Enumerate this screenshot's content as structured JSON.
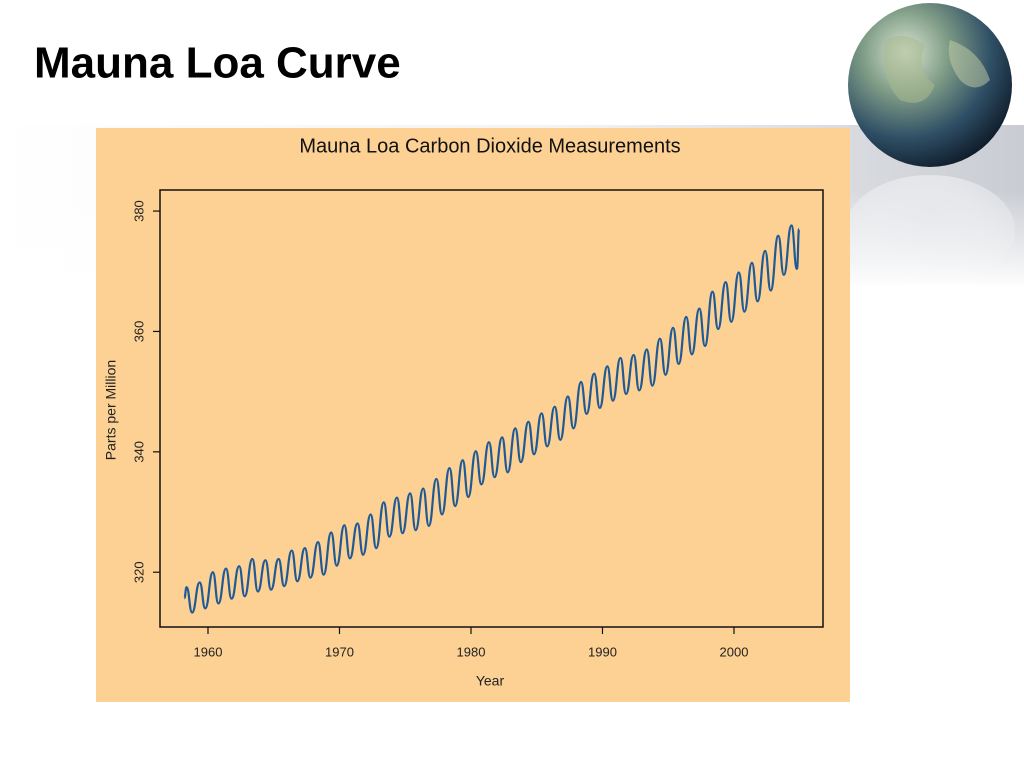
{
  "title": "Mauna Loa Curve",
  "chart_data": {
    "type": "line",
    "title": "Mauna Loa Carbon Dioxide Measurements",
    "xlabel": "Year",
    "ylabel": "Parts per Million",
    "color": "#1f5a96",
    "xlim": [
      1956.35,
      2006.77
    ],
    "ylim": [
      310.9,
      383.5
    ],
    "xticks": [
      1960,
      1970,
      1980,
      1990,
      2000
    ],
    "yticks": [
      320,
      340,
      360,
      380
    ],
    "x": [
      1958.2,
      1958.37,
      1958.79,
      1959.37,
      1959.79,
      1960.37,
      1960.79,
      1961.37,
      1961.79,
      1962.37,
      1962.79,
      1963.37,
      1963.79,
      1964.37,
      1964.79,
      1965.37,
      1965.79,
      1966.37,
      1966.79,
      1967.37,
      1967.79,
      1968.37,
      1968.79,
      1969.37,
      1969.79,
      1970.37,
      1970.79,
      1971.37,
      1971.79,
      1972.37,
      1972.79,
      1973.37,
      1973.79,
      1974.37,
      1974.79,
      1975.37,
      1975.79,
      1976.37,
      1976.79,
      1977.37,
      1977.79,
      1978.37,
      1978.79,
      1979.37,
      1979.79,
      1980.37,
      1980.79,
      1981.37,
      1981.79,
      1982.37,
      1982.79,
      1983.37,
      1983.79,
      1984.37,
      1984.79,
      1985.37,
      1985.79,
      1986.37,
      1986.79,
      1987.37,
      1987.79,
      1988.37,
      1988.79,
      1989.37,
      1989.79,
      1990.37,
      1990.79,
      1991.37,
      1991.79,
      1992.37,
      1992.79,
      1993.37,
      1993.79,
      1994.37,
      1994.79,
      1995.37,
      1995.79,
      1996.37,
      1996.79,
      1997.37,
      1997.79,
      1998.37,
      1998.79,
      1999.37,
      1999.79,
      2000.37,
      2000.79,
      2001.37,
      2001.79,
      2002.37,
      2002.79,
      2003.37,
      2003.79,
      2004.37,
      2004.79,
      2004.95
    ],
    "values": [
      315.7,
      317.5,
      313.3,
      318.3,
      314.0,
      320.0,
      314.8,
      320.6,
      315.6,
      321.0,
      316.0,
      322.2,
      316.8,
      322.0,
      317.1,
      322.2,
      317.7,
      323.6,
      318.5,
      324.0,
      319.1,
      325.0,
      319.6,
      326.6,
      321.1,
      327.8,
      322.3,
      328.1,
      322.9,
      329.6,
      324.0,
      331.6,
      325.9,
      332.4,
      326.5,
      333.1,
      327.0,
      333.9,
      327.7,
      335.5,
      329.6,
      337.3,
      331.0,
      338.6,
      332.5,
      340.1,
      334.6,
      341.6,
      335.8,
      342.4,
      336.6,
      343.9,
      338.3,
      345.0,
      339.6,
      346.4,
      340.9,
      347.5,
      342.0,
      349.2,
      343.9,
      351.6,
      346.3,
      353.0,
      347.3,
      354.2,
      348.5,
      355.6,
      349.6,
      356.1,
      350.2,
      357.0,
      351.0,
      358.8,
      352.8,
      360.6,
      354.6,
      362.4,
      356.2,
      363.8,
      357.6,
      366.6,
      360.4,
      368.2,
      361.6,
      369.8,
      363.3,
      371.4,
      365.0,
      373.4,
      366.8,
      375.9,
      369.4,
      377.6,
      370.4,
      377.0
    ]
  }
}
